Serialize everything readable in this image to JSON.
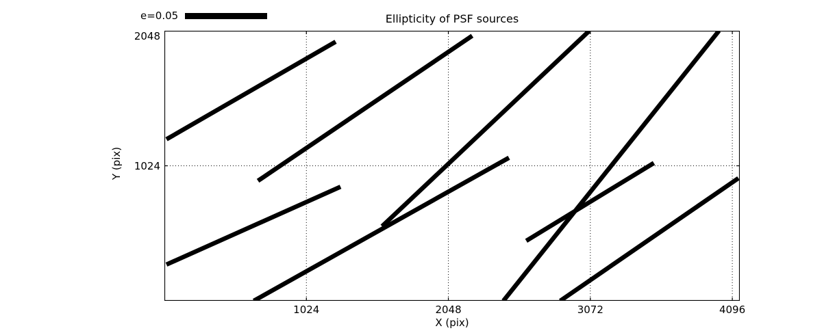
{
  "title": "Ellipticity of PSF sources",
  "legend": {
    "label": "e=0.05"
  },
  "axes": {
    "xlabel": "X (pix)",
    "ylabel": "Y (pix)"
  },
  "chart_data": {
    "type": "line",
    "subtype": "ellipticity-whisker-plot",
    "title": "Ellipticity of PSF sources",
    "xlabel": "X (pix)",
    "ylabel": "Y (pix)",
    "xlim": [
      0,
      4150
    ],
    "ylim": [
      0,
      2048
    ],
    "xticks": [
      1024,
      2048,
      3072,
      4096
    ],
    "yticks": [
      1024,
      2048
    ],
    "grid": true,
    "grid_style": "dotted",
    "legend": {
      "label": "e=0.05",
      "position": "top-left-outside"
    },
    "color": "#000000",
    "stroke_width_px": 6.5,
    "whiskers": [
      {
        "x1": 15,
        "y1": 1225,
        "x2": 1235,
        "y2": 1965
      },
      {
        "x1": 675,
        "y1": 910,
        "x2": 2220,
        "y2": 2010
      },
      {
        "x1": 1570,
        "y1": 565,
        "x2": 3065,
        "y2": 2048
      },
      {
        "x1": 15,
        "y1": 275,
        "x2": 1270,
        "y2": 865
      },
      {
        "x1": 645,
        "y1": 0,
        "x2": 2485,
        "y2": 1085
      },
      {
        "x1": 2445,
        "y1": 0,
        "x2": 4000,
        "y2": 2048
      },
      {
        "x1": 2610,
        "y1": 455,
        "x2": 3530,
        "y2": 1045
      },
      {
        "x1": 2855,
        "y1": 0,
        "x2": 4140,
        "y2": 930
      }
    ]
  }
}
